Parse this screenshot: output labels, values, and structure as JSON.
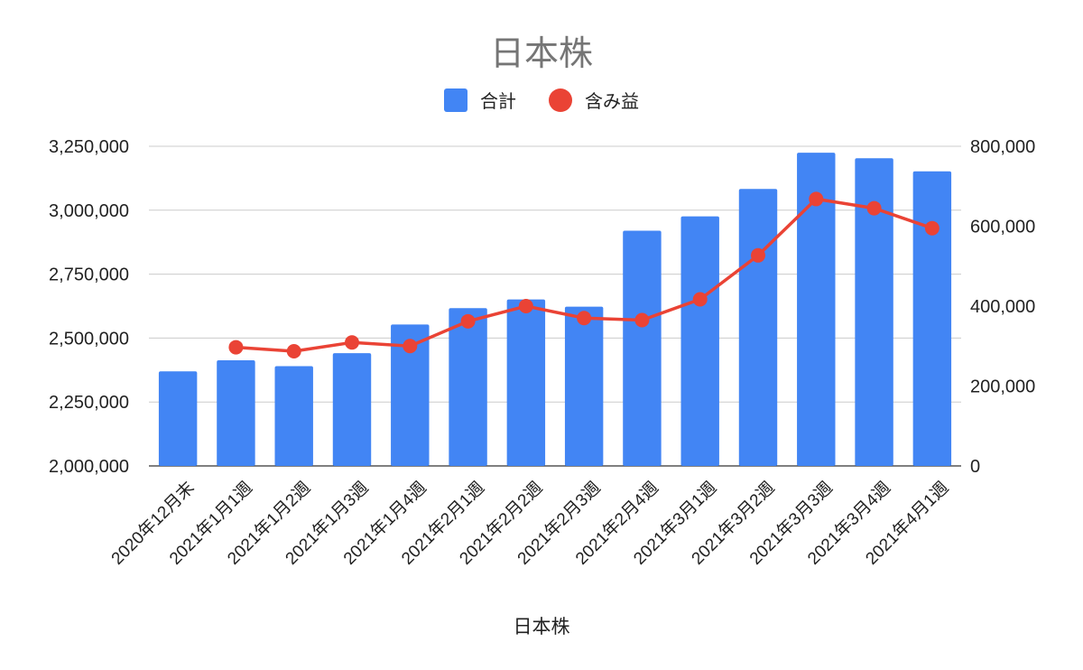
{
  "chart_data": {
    "type": "bar",
    "title": "日本株",
    "xlabel": "日本株",
    "categories": [
      "2020年12月末",
      "2021年1月1週",
      "2021年1月2週",
      "2021年1月3週",
      "2021年1月4週",
      "2021年2月1週",
      "2021年2月2週",
      "2021年2月3週",
      "2021年2月4週",
      "2021年3月1週",
      "2021年3月2週",
      "2021年3月3週",
      "2021年3月4週",
      "2021年4月1週"
    ],
    "series": [
      {
        "name": "合計",
        "type": "bar",
        "axis": "left",
        "color": "#4285F4",
        "values": [
          2370000,
          2413000,
          2390000,
          2441000,
          2553000,
          2617000,
          2651000,
          2623000,
          2920000,
          2976000,
          3083000,
          3225000,
          3203000,
          3152000
        ]
      },
      {
        "name": "含み益",
        "type": "line",
        "axis": "right",
        "color": "#EA4335",
        "values": [
          null,
          297000,
          287000,
          309000,
          300000,
          362000,
          400000,
          370000,
          365000,
          417000,
          527000,
          668000,
          645000,
          595000
        ]
      }
    ],
    "y_left": {
      "range": [
        2000000,
        3250000
      ],
      "ticks": [
        "2,000,000",
        "2,250,000",
        "2,500,000",
        "2,750,000",
        "3,000,000",
        "3,250,000"
      ]
    },
    "y_right": {
      "range": [
        0,
        800000
      ],
      "ticks": [
        "0",
        "200,000",
        "400,000",
        "600,000",
        "800,000"
      ]
    },
    "grid": true,
    "legend_position": "top"
  }
}
